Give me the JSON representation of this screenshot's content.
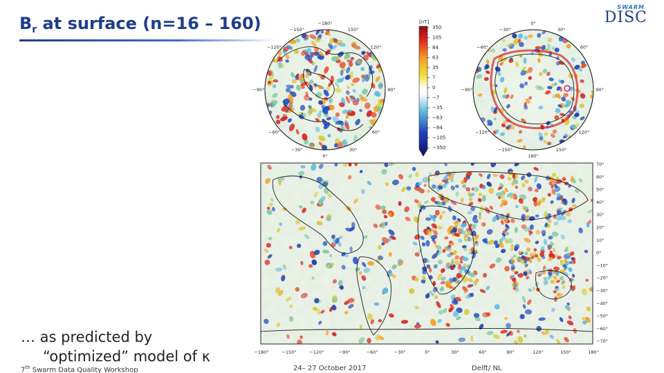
{
  "slide": {
    "title_main": "B",
    "title_sub": "r",
    "title_rest": " at surface (n=16 – 160)",
    "caption_line1": "… as predicted by",
    "caption_line2": "“optimized” model of κ"
  },
  "logo": {
    "top": "SWARM",
    "main": "DISC"
  },
  "footer": {
    "left_ord": "7",
    "left_sup": "th",
    "left_rest": " Swarm Data Quality Workshop",
    "center": "24– 27 October 2017",
    "right": "Delft/ NL"
  },
  "colorbar": {
    "unit": "[nT]",
    "ticks": [
      "350",
      "105",
      "84",
      "63",
      "35",
      "7",
      "0",
      "−7",
      "−35",
      "−63",
      "−84",
      "−105",
      "−350"
    ],
    "colors": {
      "top": "#8a1010",
      "red": "#e02020",
      "orange": "#f5a020",
      "yellow": "#f0e040",
      "white": "#ffffff",
      "cyan": "#60c0e0",
      "blue": "#2040c0",
      "navy": "#101060"
    }
  },
  "north_polar": {
    "labels": [
      "−180°",
      "150°",
      "120°",
      "−150°",
      "−120°",
      "−90°",
      "90°",
      "−60°",
      "60°",
      "−30°",
      "30°",
      "0°"
    ]
  },
  "south_polar": {
    "labels": [
      "−30°",
      "0°",
      "30°",
      "−60°",
      "60°",
      "−90°",
      "90°",
      "−120°",
      "120°",
      "−150°",
      "150°",
      "180°"
    ]
  },
  "world_map": {
    "lat_labels": [
      "70°",
      "60°",
      "50°",
      "40°",
      "30°",
      "20°",
      "10°",
      "0°",
      "−10°",
      "−20°",
      "−30°",
      "−40°",
      "−50°",
      "−60°",
      "−70°"
    ],
    "lon_labels": [
      "−180°",
      "−150°",
      "−120°",
      "−90°",
      "−60°",
      "−30°",
      "0°",
      "30°",
      "60°",
      "90°",
      "120°",
      "150°",
      "180°"
    ]
  }
}
